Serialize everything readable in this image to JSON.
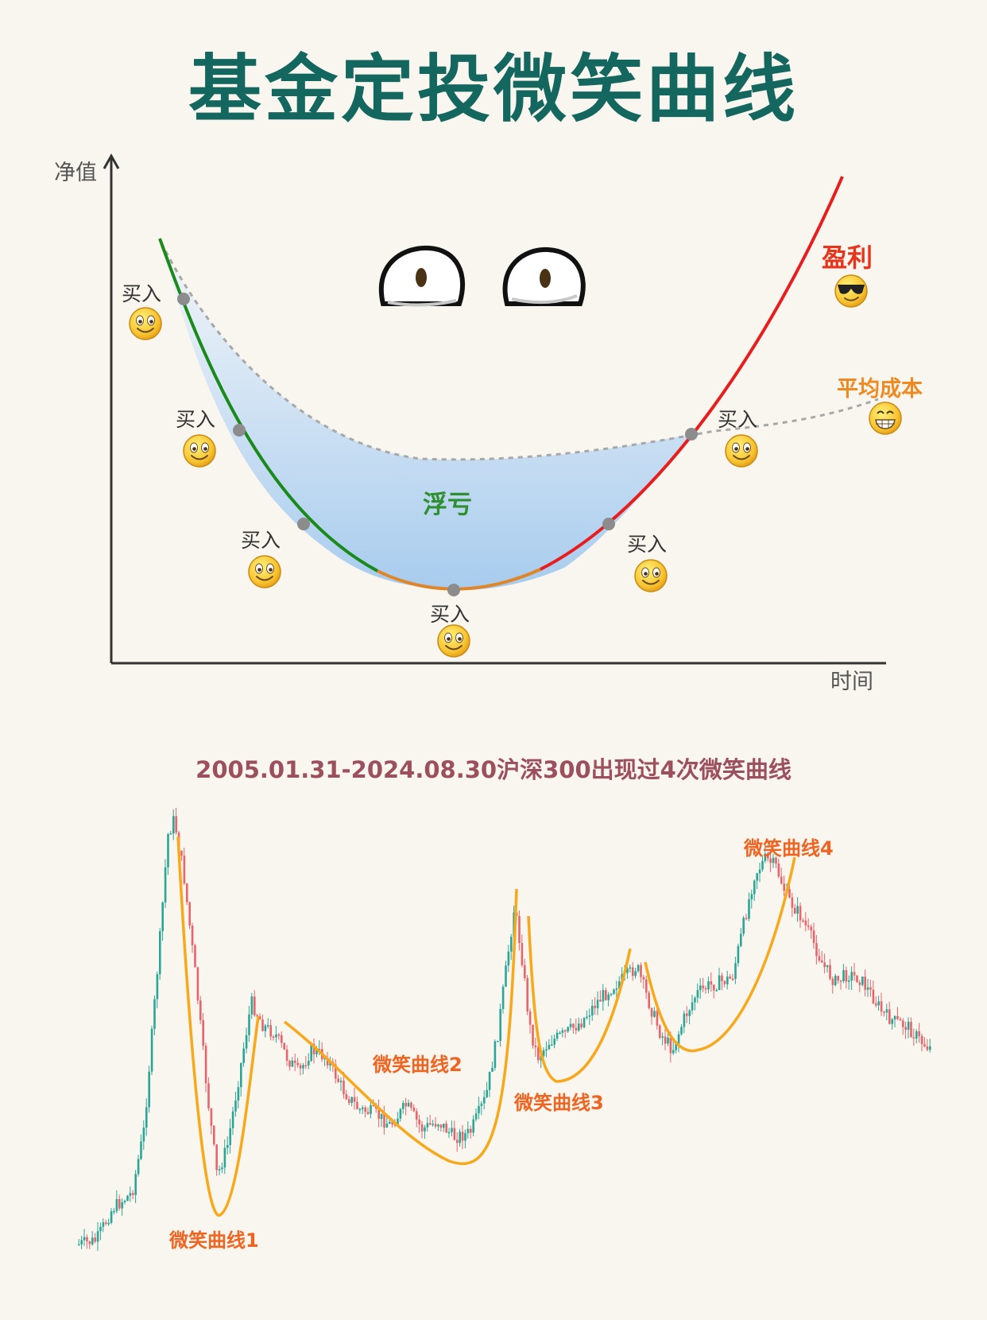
{
  "title": "基金定投微笑曲线",
  "diagram": {
    "y_axis_label": "净值",
    "x_axis_label": "时间",
    "buy_label": "买入",
    "profit_label": "盈利",
    "avg_cost_label": "平均成本",
    "loss_label": "浮亏",
    "colors": {
      "falling": "#1a8a1a",
      "bottom": "#e0862a",
      "rising": "#e81e1e",
      "avg_cost": "#aaaaaa",
      "loss_fill": "#a8ccee",
      "profit_text": "#e8341c",
      "avg_cost_text": "#ee8a22",
      "loss_text": "#2e8f2e"
    },
    "icons": [
      "smile-emoji-icon",
      "cool-emoji-icon",
      "grin-emoji-icon",
      "eyes-icon"
    ]
  },
  "kline": {
    "subtitle": "2005.01.31-2024.08.30沪深300出现过4次微笑曲线",
    "smile_labels": [
      "微笑曲线1",
      "微笑曲线2",
      "微笑曲线3",
      "微笑曲线4"
    ],
    "colors": {
      "up": "#2aa596",
      "down": "#e8646a",
      "smile": "#f7a81b",
      "label": "#f06422"
    }
  }
}
